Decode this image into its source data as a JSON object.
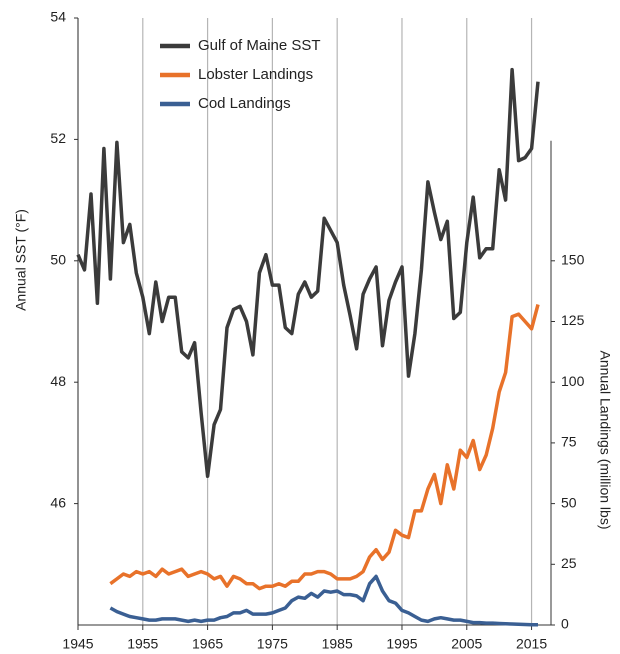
{
  "chart_data": {
    "type": "line",
    "x": [
      1945,
      1946,
      1947,
      1948,
      1949,
      1950,
      1951,
      1952,
      1953,
      1954,
      1955,
      1956,
      1957,
      1958,
      1959,
      1960,
      1961,
      1962,
      1963,
      1964,
      1965,
      1966,
      1967,
      1968,
      1969,
      1970,
      1971,
      1972,
      1973,
      1974,
      1975,
      1976,
      1977,
      1978,
      1979,
      1980,
      1981,
      1982,
      1983,
      1984,
      1985,
      1986,
      1987,
      1988,
      1989,
      1990,
      1991,
      1992,
      1993,
      1994,
      1995,
      1996,
      1997,
      1998,
      1999,
      2000,
      2001,
      2002,
      2003,
      2004,
      2005,
      2006,
      2007,
      2008,
      2009,
      2010,
      2011,
      2012,
      2013,
      2014,
      2015,
      2016
    ],
    "series": [
      {
        "name": "Gulf of Maine SST",
        "color": "#3b3b3b",
        "values": [
          50.1,
          49.85,
          51.1,
          49.3,
          51.85,
          49.7,
          51.95,
          50.3,
          50.6,
          49.8,
          49.4,
          48.8,
          49.65,
          49.0,
          49.4,
          49.4,
          48.5,
          48.4,
          48.65,
          47.5,
          46.45,
          47.3,
          47.55,
          48.9,
          49.2,
          49.25,
          49.0,
          48.45,
          49.8,
          50.1,
          49.6,
          49.6,
          48.9,
          48.8,
          49.45,
          49.65,
          49.4,
          49.5,
          50.7,
          50.5,
          50.3,
          49.6,
          49.1,
          48.55,
          49.45,
          49.7,
          49.9,
          48.6,
          49.35,
          49.65,
          49.9,
          48.1,
          48.8,
          49.85,
          51.3,
          50.8,
          50.35,
          50.65,
          49.05,
          49.15,
          50.3,
          51.05,
          50.05,
          50.2,
          50.2,
          51.5,
          51.0,
          53.15,
          51.65,
          51.7,
          51.85,
          52.95
        ]
      },
      {
        "name": "Lobster Landings",
        "color": "#e8722a",
        "axis": "y2",
        "values": [
          null,
          null,
          null,
          null,
          null,
          17,
          19,
          21,
          20,
          22,
          21,
          22,
          20,
          23,
          21,
          22,
          23,
          20,
          21,
          22,
          21,
          19,
          20,
          16,
          20,
          19,
          17,
          17,
          15,
          16,
          16,
          17,
          16,
          18,
          18,
          21,
          21,
          22,
          22,
          21,
          19,
          19,
          19,
          20,
          22,
          28,
          31,
          27,
          30,
          39,
          37,
          36,
          47,
          47,
          56,
          62,
          50,
          66,
          56,
          72,
          69,
          76,
          64,
          70,
          81,
          96,
          104,
          127,
          128,
          125,
          122,
          132
        ]
      },
      {
        "name": "Cod Landings",
        "color": "#3a5f93",
        "axis": "y2",
        "values": [
          null,
          null,
          null,
          null,
          null,
          7,
          5.5,
          4.5,
          3.5,
          3,
          2.5,
          2,
          2,
          2.5,
          2.5,
          2.5,
          2,
          1.5,
          2,
          1.5,
          2,
          2,
          3,
          3.5,
          5,
          5,
          6,
          4.5,
          4.5,
          4.5,
          5,
          6,
          7,
          10,
          11.5,
          11,
          13,
          11.5,
          14,
          13.5,
          14,
          12.5,
          12.5,
          12,
          10,
          17,
          20,
          14,
          10,
          9,
          6,
          5,
          3.5,
          2,
          1.5,
          2.5,
          3,
          2.5,
          2,
          2,
          1.5,
          1,
          1,
          0.8,
          0.8,
          0.6,
          0.5,
          0.4,
          0.3,
          0.2,
          0.1,
          0.1
        ]
      }
    ],
    "y_label": "Annual SST (°F)",
    "y2_label": "Annual Landings (million lbs)",
    "xlim": [
      1945,
      2018
    ],
    "xticks": [
      1945,
      1955,
      1965,
      1975,
      1985,
      1995,
      2005,
      2015
    ],
    "ylim": [
      44,
      54
    ],
    "yticks": [
      46,
      48,
      50,
      52,
      54
    ],
    "y2lim": [
      0,
      250
    ],
    "y2ticks": [
      0,
      25,
      50,
      75,
      100,
      125,
      150
    ],
    "grid": "x",
    "legend": "upper left"
  }
}
